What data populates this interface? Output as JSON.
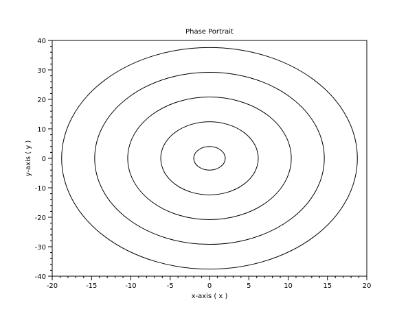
{
  "chart_data": {
    "type": "line",
    "title": "Phase Portrait",
    "xlabel": "x-axis ( x )",
    "ylabel": "y-axis ( y )",
    "xlim": [
      -20,
      20
    ],
    "ylim": [
      -40,
      40
    ],
    "x_ticks": [
      -20,
      -15,
      -10,
      -5,
      0,
      5,
      10,
      15,
      20
    ],
    "y_ticks": [
      -40,
      -30,
      -20,
      -10,
      0,
      10,
      20,
      30,
      40
    ],
    "grid": false,
    "line_color": "#000000",
    "series": [
      {
        "shape": "ellipse",
        "center": [
          0,
          0
        ],
        "x_radius": 2.0,
        "y_radius": 4.0
      },
      {
        "shape": "ellipse",
        "center": [
          0,
          0
        ],
        "x_radius": 6.2,
        "y_radius": 12.4
      },
      {
        "shape": "ellipse",
        "center": [
          0,
          0
        ],
        "x_radius": 10.4,
        "y_radius": 20.8
      },
      {
        "shape": "ellipse",
        "center": [
          0,
          0
        ],
        "x_radius": 14.6,
        "y_radius": 29.2
      },
      {
        "shape": "ellipse",
        "center": [
          0,
          0
        ],
        "x_radius": 18.8,
        "y_radius": 37.6
      }
    ]
  }
}
